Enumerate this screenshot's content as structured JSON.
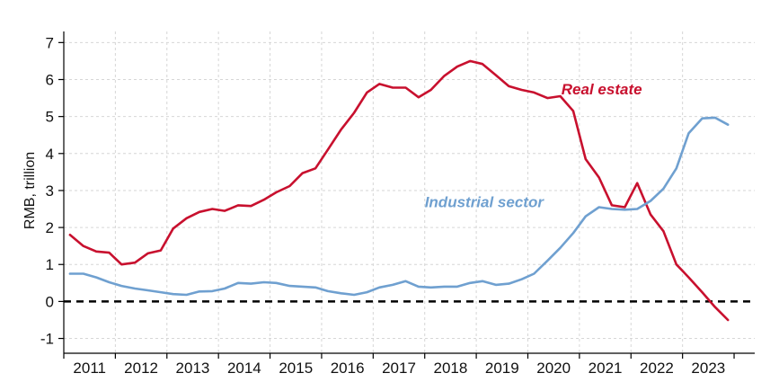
{
  "chart_data": {
    "type": "line",
    "title": "",
    "xlabel": "",
    "ylabel": "RMB, trillion",
    "ylim": [
      -1.4,
      7.3
    ],
    "yticks": [
      -1,
      0,
      1,
      2,
      3,
      4,
      5,
      6,
      7
    ],
    "ytick_labels": [
      "-1",
      "0",
      "1",
      "2",
      "3",
      "4",
      "5",
      "6",
      "7"
    ],
    "xlim": [
      2011,
      2024.4
    ],
    "years": [
      "2011",
      "2012",
      "2013",
      "2014",
      "2015",
      "2016",
      "2017",
      "2018",
      "2019",
      "2020",
      "2021",
      "2022",
      "2023"
    ],
    "grid": true,
    "zero_line": "dashed",
    "series": [
      {
        "name": "Real estate",
        "color": "#c8102e",
        "points": [
          [
            2011.12,
            1.8
          ],
          [
            2011.38,
            1.5
          ],
          [
            2011.63,
            1.35
          ],
          [
            2011.88,
            1.32
          ],
          [
            2012.12,
            1.0
          ],
          [
            2012.38,
            1.05
          ],
          [
            2012.63,
            1.3
          ],
          [
            2012.88,
            1.38
          ],
          [
            2013.12,
            1.97
          ],
          [
            2013.38,
            2.25
          ],
          [
            2013.63,
            2.42
          ],
          [
            2013.88,
            2.5
          ],
          [
            2014.12,
            2.45
          ],
          [
            2014.38,
            2.6
          ],
          [
            2014.63,
            2.58
          ],
          [
            2014.88,
            2.75
          ],
          [
            2015.12,
            2.95
          ],
          [
            2015.38,
            3.12
          ],
          [
            2015.63,
            3.47
          ],
          [
            2015.88,
            3.6
          ],
          [
            2016.12,
            4.1
          ],
          [
            2016.38,
            4.65
          ],
          [
            2016.63,
            5.1
          ],
          [
            2016.88,
            5.65
          ],
          [
            2017.12,
            5.88
          ],
          [
            2017.38,
            5.78
          ],
          [
            2017.63,
            5.78
          ],
          [
            2017.88,
            5.52
          ],
          [
            2018.12,
            5.72
          ],
          [
            2018.38,
            6.1
          ],
          [
            2018.63,
            6.35
          ],
          [
            2018.88,
            6.5
          ],
          [
            2019.12,
            6.42
          ],
          [
            2019.38,
            6.12
          ],
          [
            2019.63,
            5.82
          ],
          [
            2019.88,
            5.72
          ],
          [
            2020.12,
            5.65
          ],
          [
            2020.38,
            5.5
          ],
          [
            2020.63,
            5.55
          ],
          [
            2020.88,
            5.15
          ],
          [
            2021.12,
            3.85
          ],
          [
            2021.38,
            3.35
          ],
          [
            2021.63,
            2.6
          ],
          [
            2021.88,
            2.55
          ],
          [
            2022.12,
            3.2
          ],
          [
            2022.38,
            2.35
          ],
          [
            2022.63,
            1.9
          ],
          [
            2022.88,
            1.0
          ],
          [
            2023.12,
            0.65
          ],
          [
            2023.38,
            0.25
          ],
          [
            2023.63,
            -0.15
          ],
          [
            2023.88,
            -0.5
          ]
        ]
      },
      {
        "name": "Industrial sector",
        "color": "#6fa0d0",
        "points": [
          [
            2011.12,
            0.75
          ],
          [
            2011.38,
            0.75
          ],
          [
            2011.63,
            0.65
          ],
          [
            2011.88,
            0.52
          ],
          [
            2012.12,
            0.42
          ],
          [
            2012.38,
            0.35
          ],
          [
            2012.63,
            0.3
          ],
          [
            2012.88,
            0.25
          ],
          [
            2013.12,
            0.2
          ],
          [
            2013.38,
            0.18
          ],
          [
            2013.63,
            0.27
          ],
          [
            2013.88,
            0.28
          ],
          [
            2014.12,
            0.35
          ],
          [
            2014.38,
            0.5
          ],
          [
            2014.63,
            0.48
          ],
          [
            2014.88,
            0.52
          ],
          [
            2015.12,
            0.5
          ],
          [
            2015.38,
            0.42
          ],
          [
            2015.63,
            0.4
          ],
          [
            2015.88,
            0.38
          ],
          [
            2016.12,
            0.28
          ],
          [
            2016.38,
            0.22
          ],
          [
            2016.63,
            0.18
          ],
          [
            2016.88,
            0.25
          ],
          [
            2017.12,
            0.38
          ],
          [
            2017.38,
            0.45
          ],
          [
            2017.63,
            0.55
          ],
          [
            2017.88,
            0.4
          ],
          [
            2018.12,
            0.38
          ],
          [
            2018.38,
            0.4
          ],
          [
            2018.63,
            0.4
          ],
          [
            2018.88,
            0.5
          ],
          [
            2019.12,
            0.55
          ],
          [
            2019.38,
            0.45
          ],
          [
            2019.63,
            0.48
          ],
          [
            2019.88,
            0.6
          ],
          [
            2020.12,
            0.75
          ],
          [
            2020.38,
            1.1
          ],
          [
            2020.63,
            1.45
          ],
          [
            2020.88,
            1.85
          ],
          [
            2021.12,
            2.3
          ],
          [
            2021.38,
            2.55
          ],
          [
            2021.63,
            2.5
          ],
          [
            2021.88,
            2.48
          ],
          [
            2022.12,
            2.5
          ],
          [
            2022.38,
            2.72
          ],
          [
            2022.63,
            3.05
          ],
          [
            2022.88,
            3.6
          ],
          [
            2023.12,
            4.55
          ],
          [
            2023.38,
            4.95
          ],
          [
            2023.63,
            4.97
          ],
          [
            2023.88,
            4.78
          ]
        ]
      }
    ],
    "annotations": [
      {
        "text": "Real estate",
        "series": "Real estate",
        "x": 2020.65,
        "y": 5.6
      },
      {
        "text": "Industrial sector",
        "series": "Industrial sector",
        "x": 2018.0,
        "y": 2.55
      }
    ]
  }
}
